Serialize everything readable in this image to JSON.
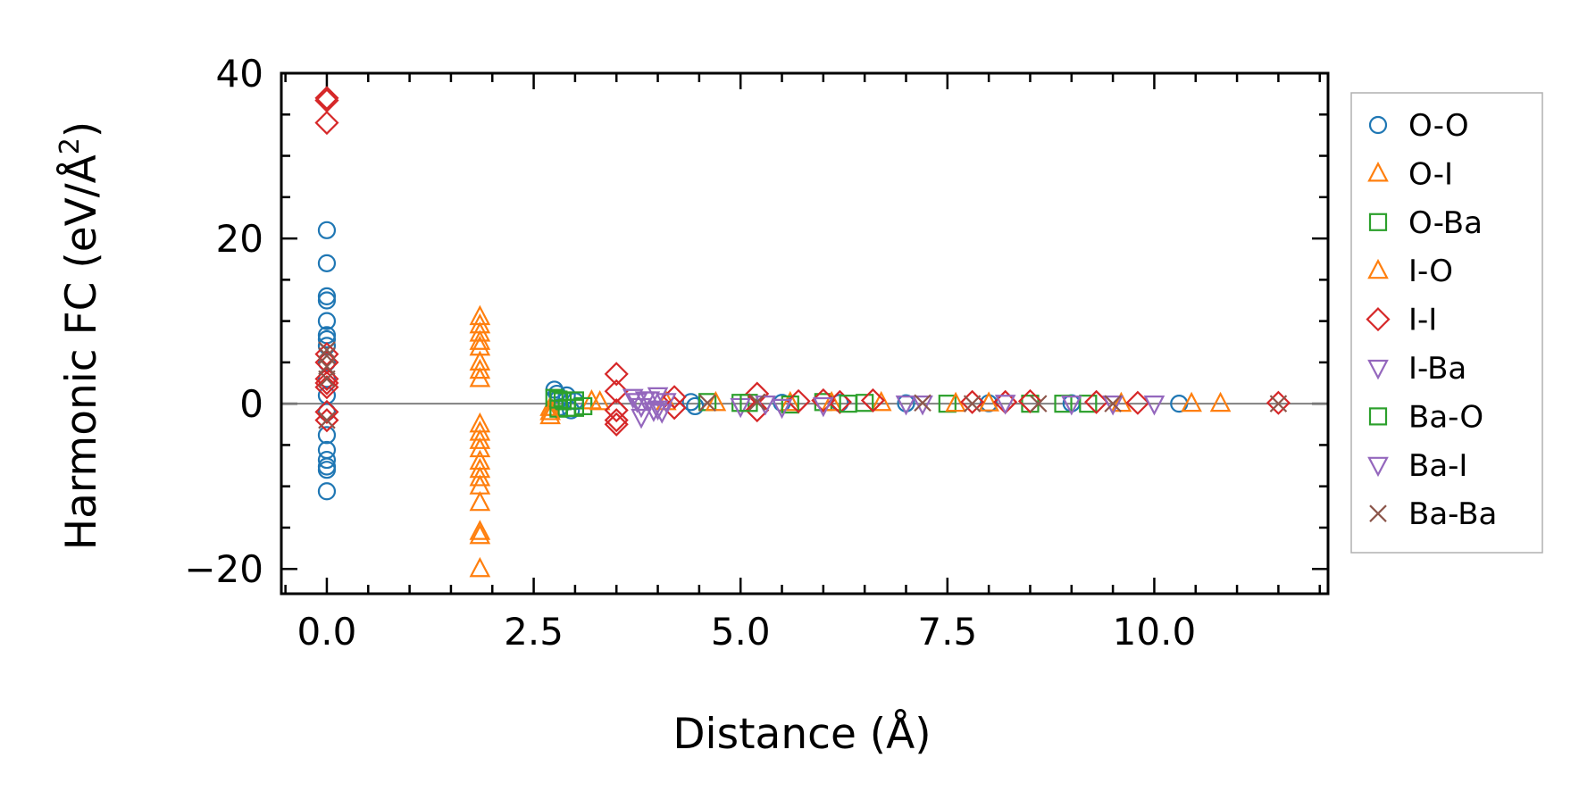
{
  "chart_data": {
    "type": "scatter",
    "title": "",
    "xlabel": "Distance (Å)",
    "ylabel_main": "Harmonic FC (eV/Å",
    "ylabel_sup": "2",
    "ylabel_end": ")",
    "xlim": [
      -0.55,
      12.1
    ],
    "ylim": [
      -23,
      40
    ],
    "x_ticks": [
      0.0,
      2.5,
      5.0,
      7.5,
      10.0
    ],
    "x_tick_labels": [
      "0.0",
      "2.5",
      "5.0",
      "7.5",
      "10.0"
    ],
    "y_ticks": [
      -20,
      0,
      20,
      40
    ],
    "y_tick_labels": [
      "−20",
      "0",
      "20",
      "40"
    ],
    "reference_line_y": 0,
    "legend_position": "outside-right",
    "series": [
      {
        "name": "O-O",
        "marker": "circle",
        "color": "#1f77b4",
        "points": [
          [
            0,
            21
          ],
          [
            0,
            17
          ],
          [
            0,
            13
          ],
          [
            0,
            12.5
          ],
          [
            0,
            10
          ],
          [
            0,
            8.3
          ],
          [
            0,
            7.8
          ],
          [
            0,
            7
          ],
          [
            0,
            5
          ],
          [
            0,
            3
          ],
          [
            0,
            1
          ],
          [
            0,
            -1
          ],
          [
            0,
            -3.8
          ],
          [
            0,
            -5.6
          ],
          [
            0,
            -6.8
          ],
          [
            0,
            -7.6
          ],
          [
            0,
            -8
          ],
          [
            0,
            -10.6
          ],
          [
            2.75,
            1.7
          ],
          [
            2.78,
            1.2
          ],
          [
            2.8,
            0.6
          ],
          [
            2.82,
            -0.4
          ],
          [
            2.9,
            1
          ],
          [
            2.95,
            -0.8
          ],
          [
            3.0,
            0.3
          ],
          [
            4.4,
            0.2
          ],
          [
            4.45,
            -0.3
          ],
          [
            5.5,
            0.1
          ],
          [
            6.2,
            0.1
          ],
          [
            7.0,
            0.05
          ],
          [
            8.0,
            0.05
          ],
          [
            9.0,
            0.05
          ],
          [
            10.3,
            0
          ]
        ]
      },
      {
        "name": "O-I",
        "marker": "triangle-up",
        "color": "#ff7f0e",
        "points": [
          [
            1.85,
            10.5
          ],
          [
            1.85,
            9.5
          ],
          [
            1.85,
            8.5
          ],
          [
            1.85,
            7.5
          ],
          [
            1.85,
            6.8
          ],
          [
            1.85,
            5
          ],
          [
            1.85,
            4
          ],
          [
            1.85,
            3
          ],
          [
            1.85,
            -2.5
          ],
          [
            1.85,
            -3.5
          ],
          [
            1.85,
            -4.5
          ],
          [
            1.85,
            -5.5
          ],
          [
            1.85,
            -7
          ],
          [
            1.85,
            -8
          ],
          [
            1.85,
            -9
          ],
          [
            1.85,
            -10
          ],
          [
            1.85,
            -12
          ],
          [
            1.85,
            -15.5
          ],
          [
            1.85,
            -16
          ],
          [
            1.85,
            -20
          ],
          [
            2.7,
            -0.5
          ],
          [
            2.7,
            -1.5
          ],
          [
            3.2,
            0.3
          ],
          [
            4.1,
            0.2
          ],
          [
            5.6,
            0.1
          ],
          [
            6.7,
            0.1
          ],
          [
            8.0,
            0.05
          ],
          [
            9.6,
            0
          ],
          [
            10.45,
            0
          ],
          [
            10.8,
            0
          ]
        ]
      },
      {
        "name": "O-Ba",
        "marker": "square",
        "color": "#2ca02c",
        "points": [
          [
            2.75,
            0.7
          ],
          [
            2.8,
            -0.6
          ],
          [
            2.85,
            0.3
          ],
          [
            2.9,
            -0.5
          ],
          [
            3.0,
            0.4
          ],
          [
            3.1,
            -0.3
          ],
          [
            4.6,
            0.2
          ],
          [
            5.0,
            0.1
          ],
          [
            5.6,
            -0.1
          ],
          [
            6.0,
            0.2
          ],
          [
            6.5,
            0.1
          ],
          [
            7.5,
            0
          ],
          [
            8.5,
            0
          ],
          [
            9.2,
            0
          ]
        ]
      },
      {
        "name": "I-O",
        "marker": "triangle-up",
        "color": "#ff7f0e",
        "points": [
          [
            2.7,
            -1
          ],
          [
            3.3,
            0.2
          ],
          [
            4.7,
            0.1
          ],
          [
            6.1,
            0.1
          ],
          [
            7.6,
            0
          ]
        ]
      },
      {
        "name": "I-I",
        "marker": "diamond",
        "color": "#d62728",
        "points": [
          [
            0,
            37
          ],
          [
            0,
            36.7
          ],
          [
            0,
            34
          ],
          [
            0,
            6
          ],
          [
            0,
            5
          ],
          [
            0,
            3
          ],
          [
            0,
            2.5
          ],
          [
            0,
            2
          ],
          [
            0,
            -1
          ],
          [
            0,
            -2
          ],
          [
            3.5,
            3.6
          ],
          [
            3.5,
            1.5
          ],
          [
            3.5,
            -0.8
          ],
          [
            3.5,
            -2
          ],
          [
            3.5,
            -2.5
          ],
          [
            4.2,
            -0.5
          ],
          [
            4.2,
            0.8
          ],
          [
            5.2,
            1.2
          ],
          [
            5.2,
            -0.8
          ],
          [
            5.7,
            0.3
          ],
          [
            6.0,
            0.4
          ],
          [
            6.2,
            0.2
          ],
          [
            6.6,
            0.4
          ],
          [
            7.8,
            0.2
          ],
          [
            8.2,
            0.2
          ],
          [
            8.5,
            0.3
          ],
          [
            9.3,
            0.2
          ],
          [
            9.8,
            0.1
          ],
          [
            11.5,
            0.1
          ]
        ]
      },
      {
        "name": "I-Ba",
        "marker": "triangle-down",
        "color": "#9467bd",
        "points": [
          [
            3.7,
            0.8
          ],
          [
            3.75,
            0.3
          ],
          [
            3.8,
            -0.3
          ],
          [
            3.8,
            -1.6
          ],
          [
            3.9,
            0.5
          ],
          [
            3.95,
            -0.8
          ],
          [
            4.0,
            1.0
          ],
          [
            4.05,
            -1.0
          ],
          [
            4.1,
            0.3
          ],
          [
            5.0,
            -0.3
          ],
          [
            5.5,
            -0.4
          ],
          [
            6.0,
            -0.2
          ],
          [
            7.0,
            0
          ],
          [
            8.2,
            0.1
          ],
          [
            9.5,
            0
          ],
          [
            10.0,
            0
          ]
        ]
      },
      {
        "name": "Ba-O",
        "marker": "square",
        "color": "#2ca02c",
        "points": [
          [
            2.8,
            0.5
          ],
          [
            3.0,
            -0.5
          ],
          [
            5.1,
            0.1
          ],
          [
            6.3,
            0
          ],
          [
            8.9,
            0
          ]
        ]
      },
      {
        "name": "Ba-I",
        "marker": "triangle-down",
        "color": "#9467bd",
        "points": [
          [
            3.85,
            0.5
          ],
          [
            4.0,
            -0.6
          ],
          [
            5.3,
            0
          ],
          [
            7.2,
            0
          ],
          [
            9.0,
            0
          ]
        ]
      },
      {
        "name": "Ba-Ba",
        "marker": "x",
        "color": "#8c564b",
        "points": [
          [
            0,
            6.5
          ],
          [
            0,
            5.8
          ],
          [
            0,
            4.5
          ],
          [
            0,
            3
          ],
          [
            0,
            -2
          ],
          [
            4.6,
            0.1
          ],
          [
            5.2,
            0.2
          ],
          [
            7.2,
            0.1
          ],
          [
            7.8,
            0
          ],
          [
            8.6,
            0
          ],
          [
            9.5,
            0
          ],
          [
            11.5,
            0
          ]
        ]
      }
    ]
  }
}
